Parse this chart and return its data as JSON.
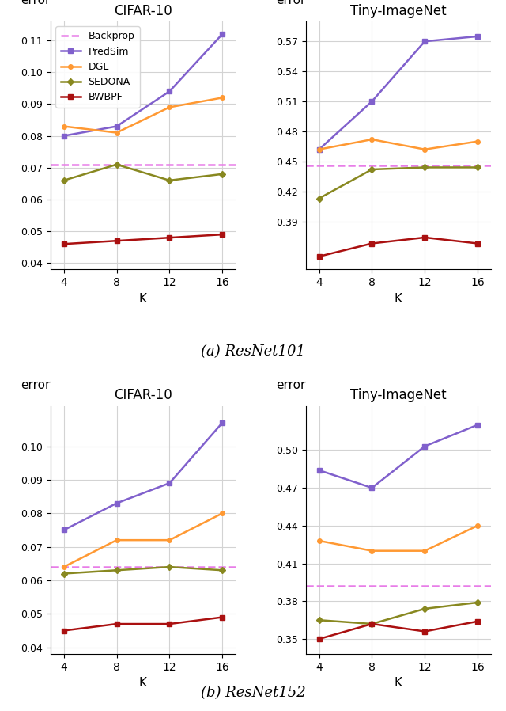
{
  "K": [
    4,
    8,
    12,
    16
  ],
  "resnet101": {
    "cifar10": {
      "title": "CIFAR-10",
      "backprop": 0.071,
      "predsim": [
        0.08,
        0.083,
        0.094,
        0.112
      ],
      "dgl": [
        0.083,
        0.081,
        0.089,
        0.092
      ],
      "sedona": [
        0.066,
        0.071,
        0.066,
        0.068
      ],
      "bwbpf": [
        0.046,
        0.047,
        0.048,
        0.049
      ],
      "ylim": [
        0.038,
        0.116
      ],
      "yticks": [
        0.04,
        0.05,
        0.06,
        0.07,
        0.08,
        0.09,
        0.1,
        0.11
      ]
    },
    "tiny": {
      "title": "Tiny-ImageNet",
      "backprop": 0.446,
      "predsim": [
        0.462,
        0.51,
        0.57,
        0.575
      ],
      "dgl": [
        0.462,
        0.472,
        0.462,
        0.47
      ],
      "sedona": [
        0.413,
        0.442,
        0.444,
        0.444
      ],
      "bwbpf": [
        0.355,
        0.368,
        0.374,
        0.368
      ],
      "ylim": [
        0.342,
        0.59
      ],
      "yticks": [
        0.39,
        0.42,
        0.45,
        0.48,
        0.51,
        0.54,
        0.57
      ]
    }
  },
  "resnet152": {
    "cifar10": {
      "title": "CIFAR-10",
      "backprop": 0.064,
      "predsim": [
        0.075,
        0.083,
        0.089,
        0.107
      ],
      "dgl": [
        0.064,
        0.072,
        0.072,
        0.08
      ],
      "sedona": [
        0.062,
        0.063,
        0.064,
        0.063
      ],
      "bwbpf": [
        0.045,
        0.047,
        0.047,
        0.049
      ],
      "ylim": [
        0.038,
        0.112
      ],
      "yticks": [
        0.04,
        0.05,
        0.06,
        0.07,
        0.08,
        0.09,
        0.1
      ]
    },
    "tiny": {
      "title": "Tiny-ImageNet",
      "backprop": 0.392,
      "predsim": [
        0.484,
        0.47,
        0.503,
        0.52
      ],
      "dgl": [
        0.428,
        0.42,
        0.42,
        0.44
      ],
      "sedona": [
        0.365,
        0.362,
        0.374,
        0.379
      ],
      "bwbpf": [
        0.35,
        0.362,
        0.356,
        0.364
      ],
      "ylim": [
        0.338,
        0.535
      ],
      "yticks": [
        0.35,
        0.38,
        0.41,
        0.44,
        0.47,
        0.5
      ]
    }
  },
  "colors": {
    "backprop": "#e87de8",
    "predsim": "#8060cc",
    "dgl": "#ff9933",
    "sedona": "#888820",
    "bwbpf": "#aa1010"
  },
  "legend_labels": [
    "Backprop",
    "PredSim",
    "DGL",
    "SEDONA",
    "BWBPF"
  ],
  "subplot_labels": [
    "(a) ResNet101",
    "(b) ResNet152"
  ],
  "ylabel": "error"
}
